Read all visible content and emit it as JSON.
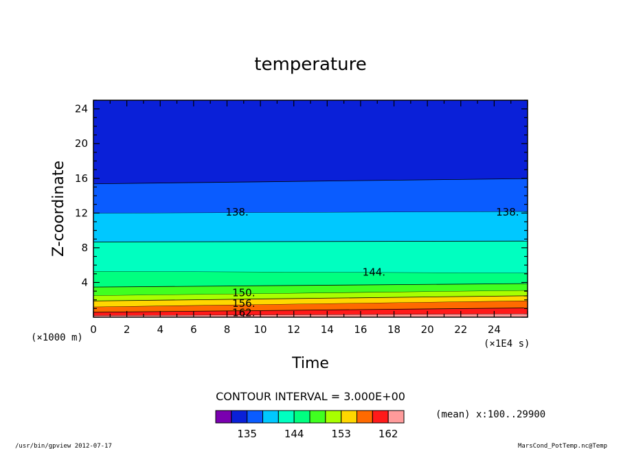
{
  "chart_data": {
    "type": "contour",
    "title": "temperature",
    "xlabel": "Time",
    "ylabel": "Z-coordinate",
    "x_unit_label": "(×1E4 s)",
    "y_unit_label": "(×1000 m)",
    "xlim": [
      0,
      26
    ],
    "ylim": [
      0,
      25
    ],
    "x_ticks": [
      0,
      2,
      4,
      6,
      8,
      10,
      12,
      14,
      16,
      18,
      20,
      22,
      24
    ],
    "y_ticks": [
      4,
      8,
      12,
      16,
      20,
      24
    ],
    "contour_interval_text": "CONTOUR INTERVAL = 3.000E+00",
    "mean_text": "(mean) x:100..29900",
    "bands": [
      {
        "lower": 162,
        "upper": 165,
        "color": "#ff9b9b",
        "z": [
          [
            0,
            0.2
          ],
          [
            26,
            0.4
          ]
        ]
      },
      {
        "lower": 159,
        "upper": 162,
        "color": "#ff1a1a",
        "z": [
          [
            0,
            0.6
          ],
          [
            26,
            1.1
          ]
        ]
      },
      {
        "lower": 156,
        "upper": 159,
        "color": "#ff6a00",
        "z": [
          [
            0,
            1.2
          ],
          [
            26,
            1.9
          ]
        ]
      },
      {
        "lower": 153,
        "upper": 156,
        "color": "#ffd700",
        "z": [
          [
            0,
            1.9
          ],
          [
            26,
            2.5
          ]
        ]
      },
      {
        "lower": 150,
        "upper": 153,
        "color": "#a8ff00",
        "z": [
          [
            0,
            2.5
          ],
          [
            26,
            3.1
          ]
        ]
      },
      {
        "lower": 147,
        "upper": 150,
        "color": "#40ff20",
        "z": [
          [
            0,
            3.5
          ],
          [
            26,
            3.9
          ]
        ]
      },
      {
        "lower": 144,
        "upper": 147,
        "color": "#00ff80",
        "z": [
          [
            0,
            5.3
          ],
          [
            26,
            5.1
          ]
        ]
      },
      {
        "lower": 141,
        "upper": 144,
        "color": "#00ffc0",
        "z": [
          [
            0,
            8.7
          ],
          [
            26,
            8.8
          ]
        ]
      },
      {
        "lower": 138,
        "upper": 141,
        "color": "#00c8ff",
        "z": [
          [
            0,
            12.0
          ],
          [
            26,
            12.2
          ]
        ]
      },
      {
        "lower": 135,
        "upper": 138,
        "color": "#0a5cff",
        "z": [
          [
            0,
            15.4
          ],
          [
            26,
            16.0
          ]
        ]
      },
      {
        "lower": 132,
        "upper": 135,
        "color": "#0a20d8",
        "z": [
          [
            0,
            25
          ],
          [
            26,
            25
          ]
        ]
      }
    ],
    "contour_labels": [
      {
        "text": "138.",
        "x": 8.6,
        "y": 12.1
      },
      {
        "text": "138.",
        "x": 24.8,
        "y": 12.1
      },
      {
        "text": "144.",
        "x": 16.8,
        "y": 5.2
      },
      {
        "text": "150.",
        "x": 9.0,
        "y": 2.8
      },
      {
        "text": "156.",
        "x": 9.0,
        "y": 1.6
      },
      {
        "text": "162.",
        "x": 9.0,
        "y": 0.5
      }
    ],
    "colorbar": {
      "colors": [
        "#7a00b0",
        "#0a20d8",
        "#0a5cff",
        "#00c8ff",
        "#00ffc0",
        "#00ff80",
        "#40ff20",
        "#a8ff00",
        "#ffd700",
        "#ff6a00",
        "#ff1a1a",
        "#ff9b9b"
      ],
      "tick_labels": [
        "135",
        "144",
        "153",
        "162"
      ]
    }
  },
  "footer": {
    "left": "/usr/bin/gpview   2012-07-17",
    "right": "MarsCond_PotTemp.nc@Temp"
  }
}
